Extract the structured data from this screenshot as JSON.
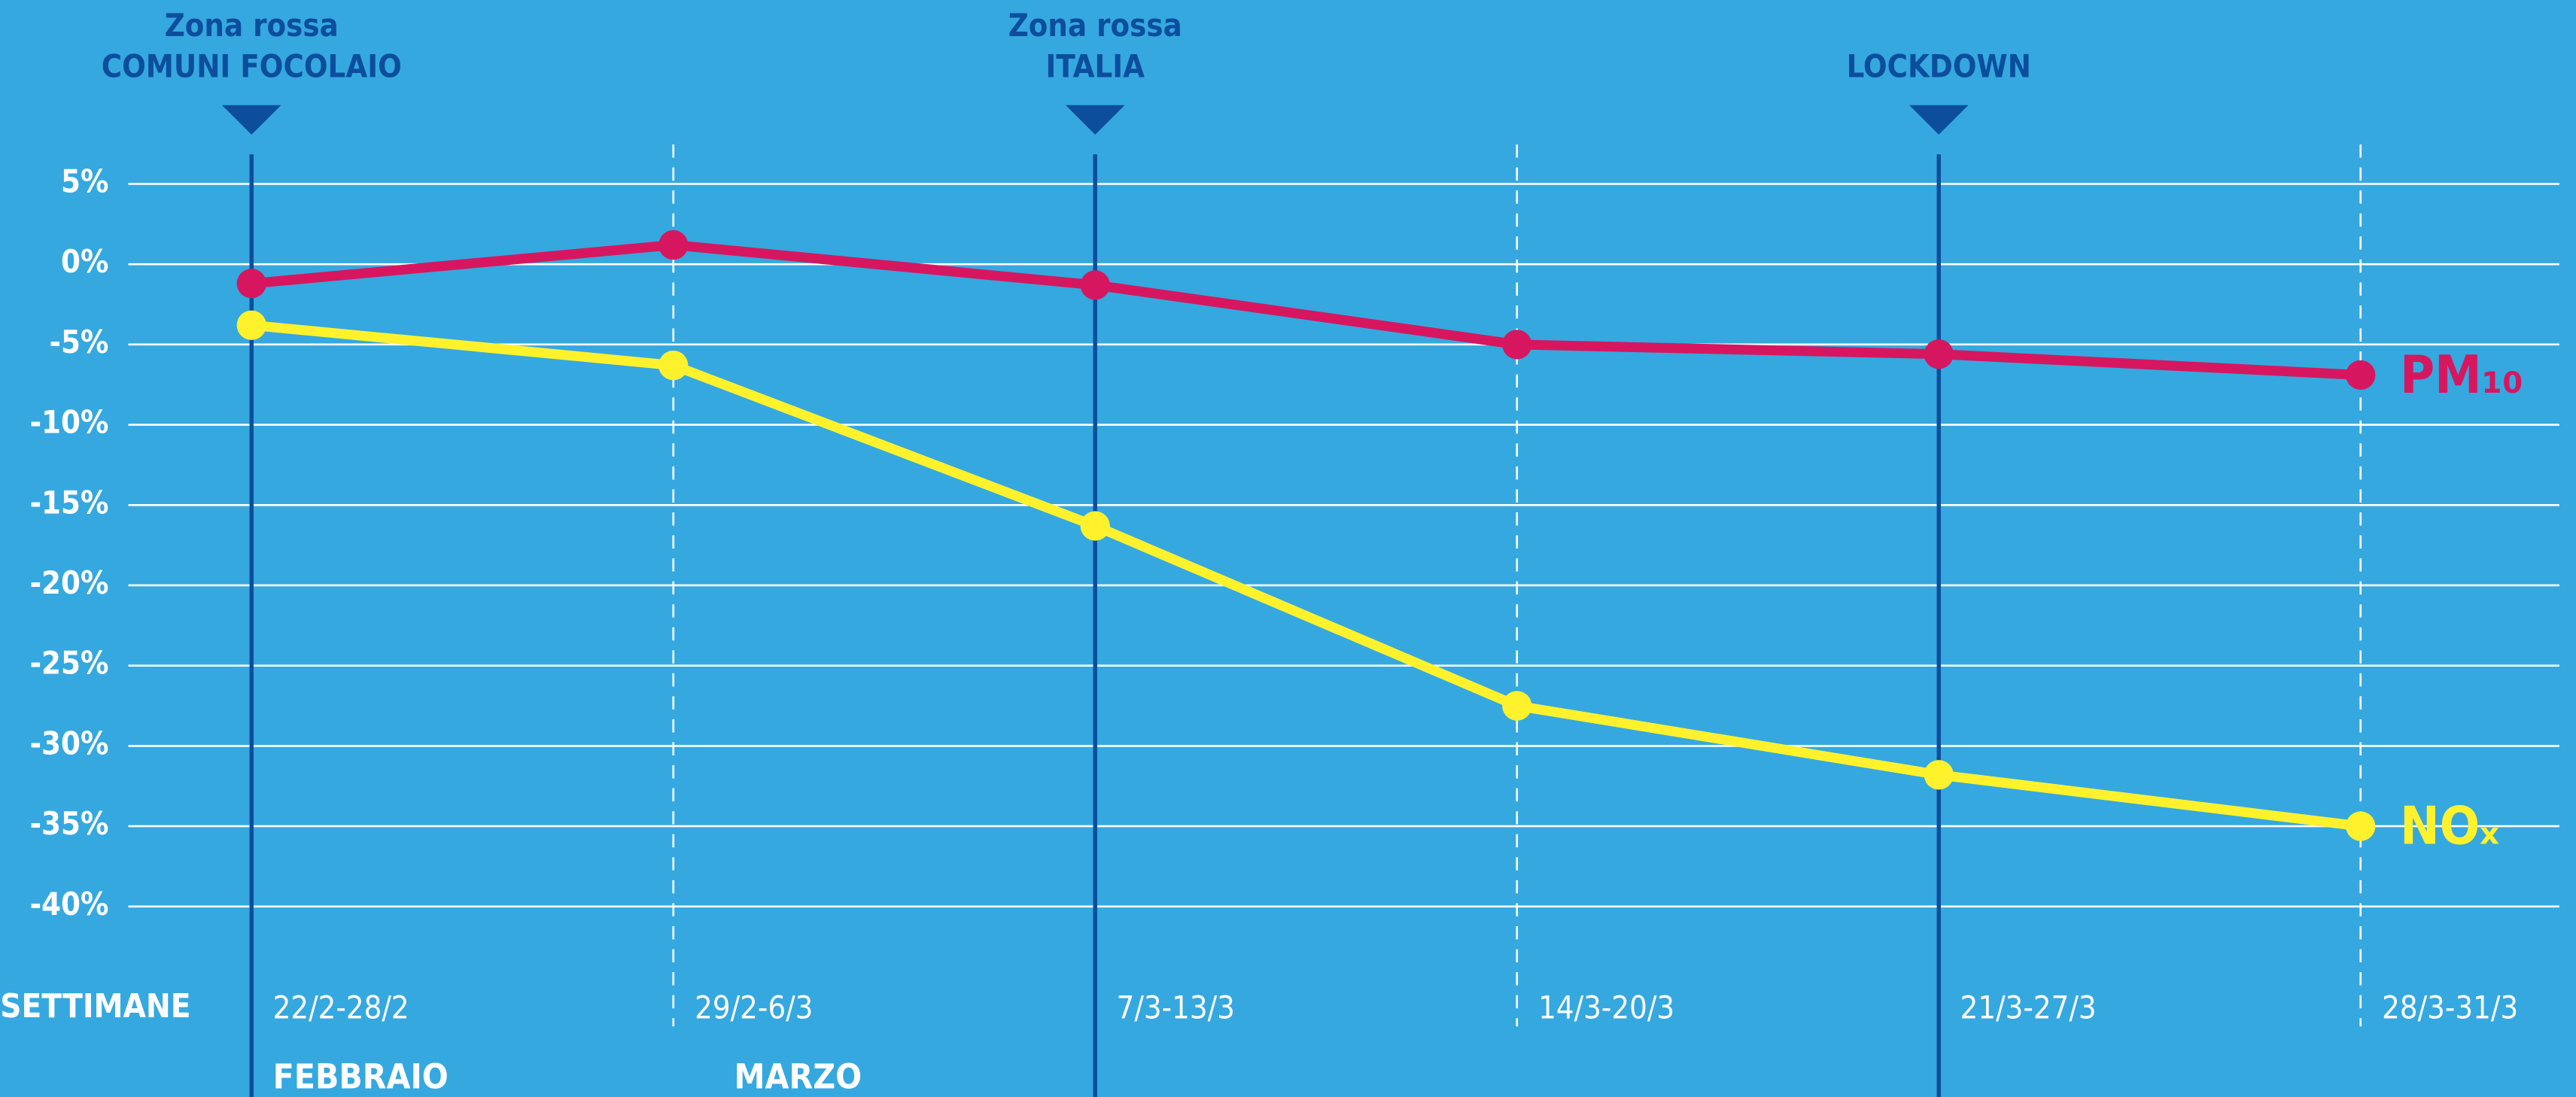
{
  "chart_data": {
    "type": "line",
    "x_label": "SETTIMANE",
    "categories": [
      "22/2-28/2",
      "29/2-6/3",
      "7/3-13/3",
      "14/3-20/3",
      "21/3-27/3",
      "28/3-31/3"
    ],
    "series": [
      {
        "name": "PM₁₀",
        "color": "#d6175f",
        "values": [
          -1.2,
          1.2,
          -1.3,
          -5.0,
          -5.6,
          -6.9
        ]
      },
      {
        "name": "NOₓ",
        "color": "#fff22d",
        "values": [
          -3.8,
          -6.3,
          -16.3,
          -27.5,
          -31.8,
          -35.0
        ]
      }
    ],
    "ylim": [
      -40,
      5
    ],
    "yticks": [
      {
        "value": 5,
        "label": "5%"
      },
      {
        "value": 0,
        "label": "0%"
      },
      {
        "value": -5,
        "label": "-5%"
      },
      {
        "value": -10,
        "label": "-10%"
      },
      {
        "value": -15,
        "label": "-15%"
      },
      {
        "value": -20,
        "label": "-20%"
      },
      {
        "value": -25,
        "label": "-25%"
      },
      {
        "value": -30,
        "label": "-30%"
      },
      {
        "value": -35,
        "label": "-35%"
      },
      {
        "value": -40,
        "label": "-40%"
      }
    ],
    "grid": true,
    "annotations": [
      {
        "at": "22/2-28/2",
        "text": [
          "Zona rossa",
          "COMUNI FOCOLAIO"
        ]
      },
      {
        "at": "7/3-13/3",
        "text": [
          "Zona rossa",
          "ITALIA"
        ]
      },
      {
        "at": "21/3-27/3",
        "text": [
          "LOCKDOWN"
        ]
      }
    ],
    "months": [
      {
        "label": "FEBBRAIO",
        "at": "22/2-28/2"
      },
      {
        "label": "MARZO",
        "at": "29/2-6/3"
      }
    ]
  }
}
